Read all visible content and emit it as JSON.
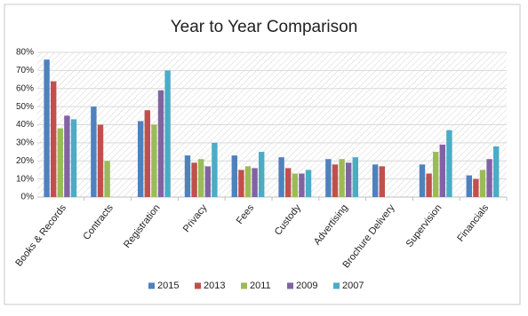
{
  "chart_data": {
    "type": "bar",
    "title": "Year to Year Comparison",
    "categories": [
      "Books & Records",
      "Contracts",
      "Registration",
      "Privacy",
      "Fees",
      "Custody",
      "Advertising",
      "Brochure Delivery",
      "Supervision",
      "Financials"
    ],
    "series": [
      {
        "name": "2015",
        "color": "#4f81bd",
        "values": [
          76,
          50,
          42,
          23,
          23,
          22,
          21,
          18,
          18,
          12
        ]
      },
      {
        "name": "2013",
        "color": "#c0504d",
        "values": [
          64,
          40,
          48,
          19,
          15,
          16,
          18,
          17,
          13,
          10
        ]
      },
      {
        "name": "2011",
        "color": "#9bbb59",
        "values": [
          38,
          20,
          40,
          21,
          17,
          13,
          21,
          null,
          25,
          15
        ]
      },
      {
        "name": "2009",
        "color": "#8064a2",
        "values": [
          45,
          null,
          59,
          17,
          16,
          13,
          19,
          null,
          29,
          21
        ]
      },
      {
        "name": "2007",
        "color": "#4bacc6",
        "values": [
          43,
          null,
          70,
          30,
          25,
          15,
          22,
          null,
          37,
          28
        ]
      }
    ],
    "ylim": [
      0,
      80
    ],
    "yticks": [
      {
        "value": 0,
        "label": "0%"
      },
      {
        "value": 10,
        "label": "10%"
      },
      {
        "value": 20,
        "label": "20%"
      },
      {
        "value": 30,
        "label": "30%"
      },
      {
        "value": 40,
        "label": "40%"
      },
      {
        "value": 50,
        "label": "50%"
      },
      {
        "value": 60,
        "label": "60%"
      },
      {
        "value": 70,
        "label": "70%"
      },
      {
        "value": 80,
        "label": "80%"
      }
    ],
    "grid": true,
    "legend": "bottom"
  }
}
